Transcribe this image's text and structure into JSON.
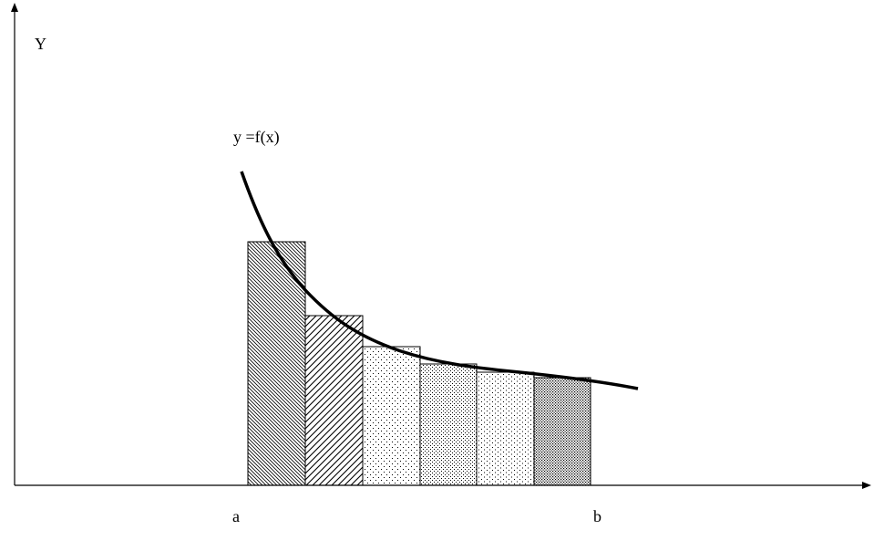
{
  "axis_labels": {
    "y": "Y"
  },
  "curve_label": "y =f(x)",
  "interval": {
    "start": "a",
    "end": "b"
  }
}
